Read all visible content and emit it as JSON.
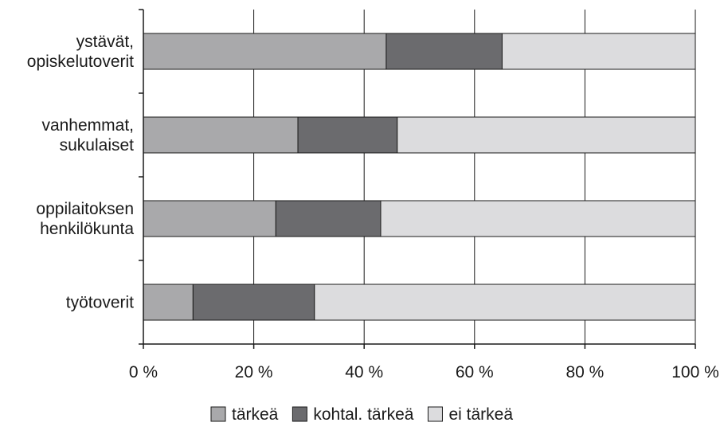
{
  "chart_data": {
    "type": "bar",
    "orientation": "horizontal",
    "stacked": "percent",
    "categories": [
      [
        "ystävät,",
        "opiskelutoverit"
      ],
      [
        "vanhemmat,",
        "sukulaiset"
      ],
      [
        "oppilaitoksen",
        "henkilökunta"
      ],
      [
        "työtoverit"
      ]
    ],
    "series": [
      {
        "name": "tärkeä",
        "color": "#a9a9ab",
        "values": [
          44,
          28,
          24,
          9
        ]
      },
      {
        "name": "kohtal. tärkeä",
        "color": "#6b6b6e",
        "values": [
          21,
          18,
          19,
          22
        ]
      },
      {
        "name": "ei tärkeä",
        "color": "#dcdcde",
        "values": [
          35,
          54,
          57,
          69
        ]
      }
    ],
    "xlim": [
      0,
      100
    ],
    "xticks": [
      0,
      20,
      40,
      60,
      80,
      100
    ],
    "xtick_labels": [
      "0 %",
      "20 %",
      "40 %",
      "60 %",
      "80 %",
      "100 %"
    ],
    "grid": "vertical lines at x ticks",
    "legend_position": "bottom-center",
    "title": "",
    "xlabel": "",
    "ylabel": ""
  }
}
